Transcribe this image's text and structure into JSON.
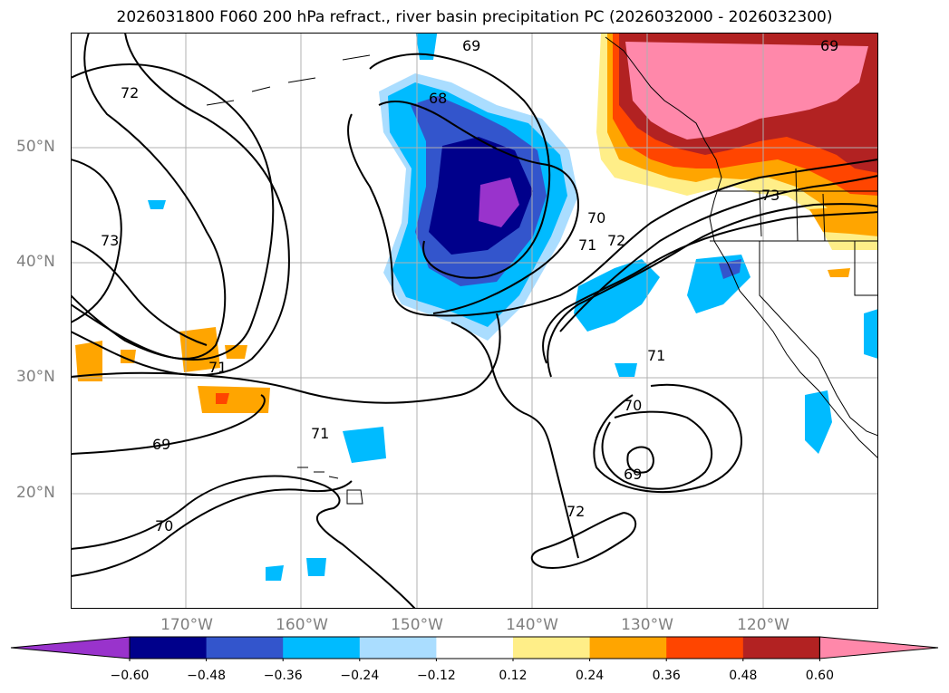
{
  "title": "2026031800 F060 200 hPa refract., river basin precipitation PC (2026032000 - 2026032300)",
  "lat_labels": [
    "50°N",
    "40°N",
    "30°N",
    "20°N"
  ],
  "lon_labels": [
    "170°W",
    "160°W",
    "150°W",
    "140°W",
    "130°W",
    "120°W"
  ],
  "contour_labels": [
    "69",
    "68",
    "72",
    "73",
    "71",
    "69",
    "70",
    "70",
    "71",
    "72",
    "73",
    "71",
    "71",
    "70",
    "69",
    "72",
    "69"
  ],
  "colorbar": {
    "ticks": [
      "−0.60",
      "−0.48",
      "−0.36",
      "−0.24",
      "−0.12",
      "0.12",
      "0.24",
      "0.36",
      "0.48",
      "0.60"
    ],
    "colors": [
      "#9933cc",
      "#00008b",
      "#3355cc",
      "#00bbff",
      "#aaddff",
      "#ffffff",
      "#ffee88",
      "#ffa500",
      "#ff4500",
      "#b22222",
      "#ff88aa"
    ]
  }
}
